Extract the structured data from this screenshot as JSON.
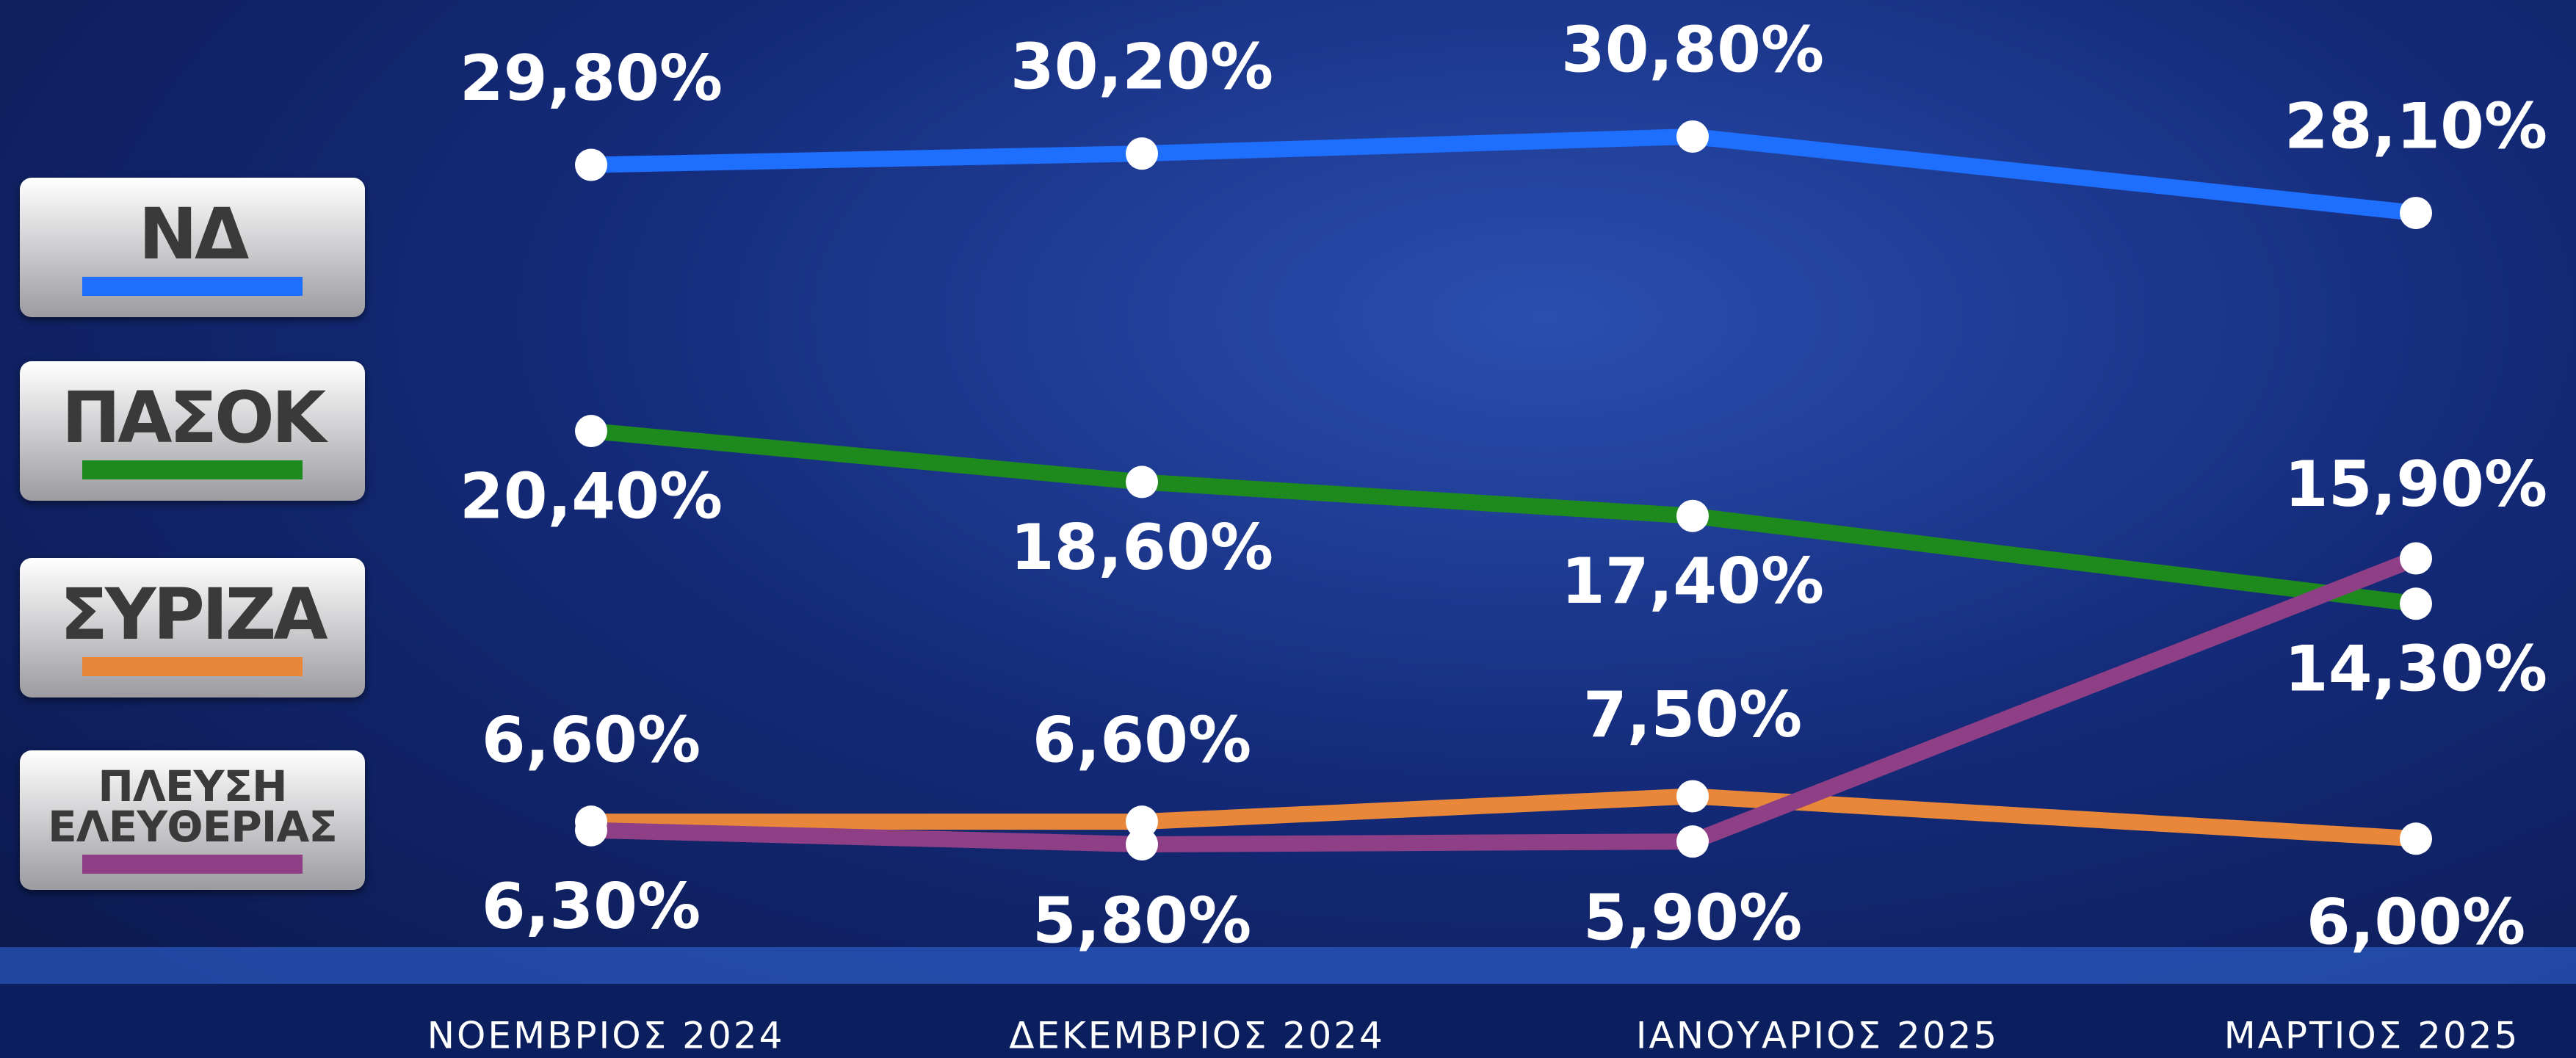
{
  "chart_data": {
    "type": "line",
    "categories": [
      "ΝΟΕΜΒΡΙΟΣ 2024",
      "ΔΕΚΕΜΒΡΙΟΣ 2024",
      "ΙΑΝΟΥΑΡΙΟΣ 2025",
      "ΜΑΡΤΙΟΣ 2025"
    ],
    "series": [
      {
        "name": "ΝΔ",
        "color": "#1f6fff",
        "values": [
          29.8,
          30.2,
          30.8,
          28.1
        ],
        "value_labels": [
          "29,80%",
          "30,20%",
          "30,80%",
          "28,10%"
        ]
      },
      {
        "name": "ΠΑΣΟΚ",
        "color": "#1e8a1e",
        "values": [
          20.4,
          18.6,
          17.4,
          14.3
        ],
        "value_labels": [
          "20,40%",
          "18,60%",
          "17,40%",
          "14,30%"
        ]
      },
      {
        "name": "ΣΥΡΙΖΑ",
        "color": "#e8873a",
        "values": [
          6.6,
          6.6,
          7.5,
          6.0
        ],
        "value_labels": [
          "6,60%",
          "6,60%",
          "7,50%",
          "6,00%"
        ]
      },
      {
        "name": "ΠΛΕΥΣΗ ΕΛΕΥΘΕΡΙΑΣ",
        "color": "#8e3f86",
        "values": [
          6.3,
          5.8,
          5.9,
          15.9
        ],
        "value_labels": [
          "6,30%",
          "5,80%",
          "5,90%",
          "15,90%"
        ]
      }
    ]
  }
}
